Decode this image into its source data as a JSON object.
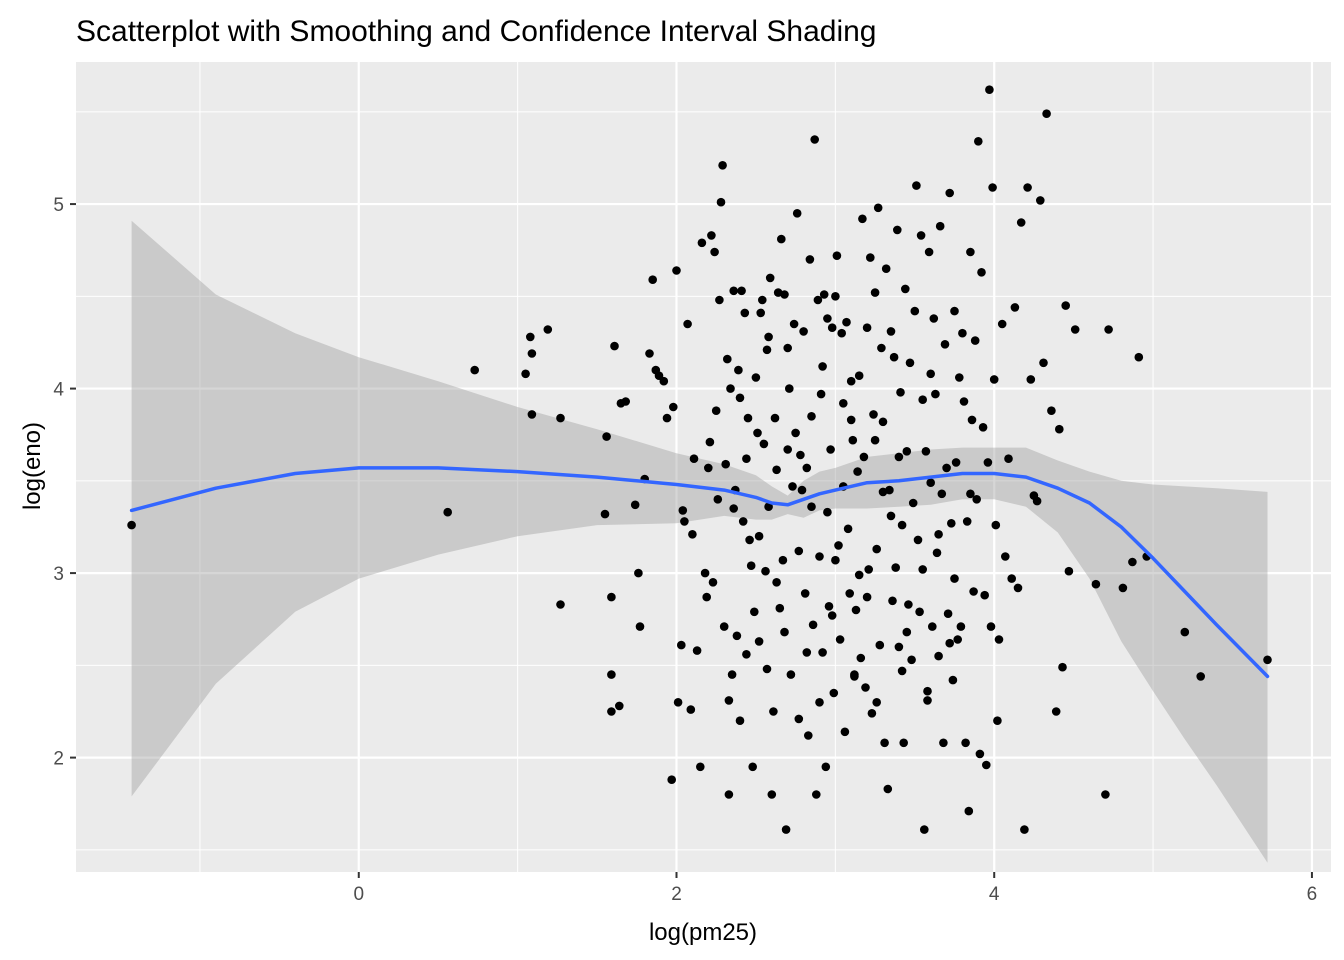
{
  "chart_data": {
    "type": "scatter",
    "title": "Scatterplot with Smoothing and Confidence Interval Shading",
    "xlabel": "log(pm25)",
    "ylabel": "log(eno)",
    "xlim": [
      -1.78,
      6.12
    ],
    "ylim": [
      1.38,
      5.77
    ],
    "x_ticks": [
      0,
      2,
      4,
      6
    ],
    "y_ticks": [
      2,
      3,
      4,
      5
    ],
    "x_tick_labels": [
      "0",
      "2",
      "4",
      "6"
    ],
    "y_tick_labels": [
      "2",
      "3",
      "4",
      "5"
    ],
    "grid": true,
    "legend": "none",
    "colors": {
      "panel": "#ebebeb",
      "grid": "#ffffff",
      "points": "#000000",
      "smooth": "#3366ff",
      "ribbon": "#bdbdbd"
    },
    "points": [
      [
        -1.43,
        3.26
      ],
      [
        0.56,
        3.33
      ],
      [
        0.73,
        4.1
      ],
      [
        1.05,
        4.08
      ],
      [
        1.08,
        4.28
      ],
      [
        1.09,
        4.19
      ],
      [
        1.09,
        3.86
      ],
      [
        1.19,
        4.32
      ],
      [
        1.27,
        2.83
      ],
      [
        1.27,
        3.84
      ],
      [
        1.55,
        3.32
      ],
      [
        1.56,
        3.74
      ],
      [
        1.59,
        2.87
      ],
      [
        1.59,
        2.45
      ],
      [
        1.59,
        2.25
      ],
      [
        1.61,
        4.23
      ],
      [
        1.64,
        2.28
      ],
      [
        1.65,
        3.92
      ],
      [
        1.68,
        3.93
      ],
      [
        1.74,
        3.37
      ],
      [
        1.76,
        3.0
      ],
      [
        1.77,
        2.71
      ],
      [
        1.8,
        3.51
      ],
      [
        1.83,
        4.19
      ],
      [
        1.85,
        4.59
      ],
      [
        1.87,
        4.1
      ],
      [
        1.89,
        4.07
      ],
      [
        1.92,
        4.04
      ],
      [
        1.94,
        3.84
      ],
      [
        1.97,
        1.88
      ],
      [
        1.98,
        3.9
      ],
      [
        2.0,
        4.64
      ],
      [
        2.01,
        2.3
      ],
      [
        2.03,
        2.61
      ],
      [
        2.05,
        3.28
      ],
      [
        2.07,
        4.35
      ],
      [
        2.09,
        2.26
      ],
      [
        2.11,
        3.62
      ],
      [
        2.13,
        2.58
      ],
      [
        2.15,
        1.95
      ],
      [
        2.16,
        4.79
      ],
      [
        2.18,
        3.0
      ],
      [
        2.19,
        2.87
      ],
      [
        2.2,
        3.57
      ],
      [
        2.21,
        3.71
      ],
      [
        2.22,
        4.83
      ],
      [
        2.23,
        2.95
      ],
      [
        2.24,
        4.74
      ],
      [
        2.26,
        3.4
      ],
      [
        2.27,
        4.48
      ],
      [
        2.28,
        5.01
      ],
      [
        2.29,
        5.21
      ],
      [
        2.3,
        2.71
      ],
      [
        2.31,
        3.59
      ],
      [
        2.32,
        4.16
      ],
      [
        2.33,
        2.31
      ],
      [
        2.33,
        1.8
      ],
      [
        2.34,
        4.0
      ],
      [
        2.35,
        2.45
      ],
      [
        2.36,
        4.53
      ],
      [
        2.37,
        3.45
      ],
      [
        2.38,
        2.66
      ],
      [
        2.39,
        4.1
      ],
      [
        2.4,
        2.2
      ],
      [
        2.41,
        4.53
      ],
      [
        2.42,
        3.28
      ],
      [
        2.43,
        4.41
      ],
      [
        2.44,
        2.56
      ],
      [
        2.45,
        3.84
      ],
      [
        2.47,
        3.04
      ],
      [
        2.48,
        1.95
      ],
      [
        2.49,
        2.79
      ],
      [
        2.5,
        4.06
      ],
      [
        2.51,
        3.76
      ],
      [
        2.52,
        3.2
      ],
      [
        2.53,
        4.41
      ],
      [
        2.54,
        4.48
      ],
      [
        2.55,
        3.7
      ],
      [
        2.56,
        3.01
      ],
      [
        2.57,
        4.21
      ],
      [
        2.58,
        3.36
      ],
      [
        2.59,
        4.6
      ],
      [
        2.6,
        1.8
      ],
      [
        2.61,
        2.25
      ],
      [
        2.62,
        3.84
      ],
      [
        2.63,
        3.56
      ],
      [
        2.64,
        4.52
      ],
      [
        2.65,
        2.81
      ],
      [
        2.66,
        4.81
      ],
      [
        2.67,
        3.07
      ],
      [
        2.68,
        4.51
      ],
      [
        2.69,
        1.61
      ],
      [
        2.7,
        3.67
      ],
      [
        2.71,
        4.0
      ],
      [
        2.72,
        2.45
      ],
      [
        2.73,
        3.47
      ],
      [
        2.74,
        4.35
      ],
      [
        2.75,
        3.76
      ],
      [
        2.76,
        4.95
      ],
      [
        2.77,
        2.21
      ],
      [
        2.78,
        3.64
      ],
      [
        2.79,
        3.45
      ],
      [
        2.8,
        4.31
      ],
      [
        2.81,
        2.89
      ],
      [
        2.82,
        3.57
      ],
      [
        2.83,
        2.12
      ],
      [
        2.84,
        4.7
      ],
      [
        2.85,
        3.36
      ],
      [
        2.86,
        2.72
      ],
      [
        2.87,
        5.35
      ],
      [
        2.88,
        1.8
      ],
      [
        2.89,
        4.48
      ],
      [
        2.9,
        3.09
      ],
      [
        2.91,
        3.97
      ],
      [
        2.92,
        2.57
      ],
      [
        2.93,
        4.51
      ],
      [
        2.94,
        1.95
      ],
      [
        2.95,
        4.38
      ],
      [
        2.96,
        2.82
      ],
      [
        2.97,
        3.67
      ],
      [
        2.98,
        4.33
      ],
      [
        2.99,
        2.35
      ],
      [
        3.0,
        4.5
      ],
      [
        3.01,
        4.72
      ],
      [
        3.02,
        3.15
      ],
      [
        3.03,
        2.64
      ],
      [
        3.04,
        4.3
      ],
      [
        3.05,
        3.92
      ],
      [
        3.06,
        2.14
      ],
      [
        3.07,
        4.36
      ],
      [
        3.08,
        3.24
      ],
      [
        3.09,
        2.89
      ],
      [
        3.1,
        4.04
      ],
      [
        3.11,
        3.72
      ],
      [
        3.12,
        2.45
      ],
      [
        3.13,
        2.8
      ],
      [
        3.14,
        3.55
      ],
      [
        3.15,
        4.07
      ],
      [
        3.16,
        2.54
      ],
      [
        3.17,
        4.92
      ],
      [
        3.18,
        3.63
      ],
      [
        3.19,
        2.38
      ],
      [
        3.2,
        4.33
      ],
      [
        3.21,
        3.02
      ],
      [
        3.22,
        4.71
      ],
      [
        3.23,
        2.24
      ],
      [
        3.24,
        3.86
      ],
      [
        3.25,
        4.52
      ],
      [
        3.26,
        3.13
      ],
      [
        3.27,
        4.98
      ],
      [
        3.28,
        2.61
      ],
      [
        3.29,
        4.22
      ],
      [
        3.3,
        3.44
      ],
      [
        3.31,
        2.08
      ],
      [
        3.32,
        4.65
      ],
      [
        3.33,
        1.83
      ],
      [
        3.34,
        3.45
      ],
      [
        3.35,
        4.31
      ],
      [
        3.36,
        2.85
      ],
      [
        3.37,
        4.17
      ],
      [
        3.38,
        3.03
      ],
      [
        3.39,
        4.86
      ],
      [
        3.4,
        2.6
      ],
      [
        3.41,
        3.98
      ],
      [
        3.42,
        3.26
      ],
      [
        3.43,
        2.08
      ],
      [
        3.44,
        4.54
      ],
      [
        3.45,
        3.66
      ],
      [
        3.46,
        2.83
      ],
      [
        3.47,
        4.14
      ],
      [
        3.48,
        2.53
      ],
      [
        3.49,
        3.38
      ],
      [
        3.5,
        4.42
      ],
      [
        3.51,
        5.1
      ],
      [
        3.52,
        3.18
      ],
      [
        3.53,
        2.79
      ],
      [
        3.54,
        4.83
      ],
      [
        3.55,
        3.94
      ],
      [
        3.56,
        1.61
      ],
      [
        3.57,
        3.66
      ],
      [
        3.58,
        2.31
      ],
      [
        3.59,
        4.74
      ],
      [
        3.6,
        3.49
      ],
      [
        3.61,
        2.71
      ],
      [
        3.62,
        4.38
      ],
      [
        3.63,
        3.97
      ],
      [
        3.64,
        3.11
      ],
      [
        3.65,
        2.55
      ],
      [
        3.66,
        4.88
      ],
      [
        3.67,
        3.43
      ],
      [
        3.68,
        2.08
      ],
      [
        3.69,
        4.24
      ],
      [
        3.7,
        3.57
      ],
      [
        3.71,
        2.78
      ],
      [
        3.72,
        5.06
      ],
      [
        3.73,
        3.27
      ],
      [
        3.74,
        2.42
      ],
      [
        3.75,
        4.42
      ],
      [
        3.76,
        3.6
      ],
      [
        3.77,
        2.64
      ],
      [
        3.78,
        4.06
      ],
      [
        3.79,
        2.71
      ],
      [
        3.8,
        4.3
      ],
      [
        3.81,
        3.93
      ],
      [
        3.82,
        2.08
      ],
      [
        3.83,
        3.28
      ],
      [
        3.84,
        1.71
      ],
      [
        3.85,
        4.74
      ],
      [
        3.86,
        3.83
      ],
      [
        3.87,
        2.9
      ],
      [
        3.88,
        4.26
      ],
      [
        3.89,
        3.4
      ],
      [
        3.9,
        5.34
      ],
      [
        3.91,
        2.02
      ],
      [
        3.92,
        4.63
      ],
      [
        3.93,
        3.79
      ],
      [
        3.94,
        2.88
      ],
      [
        3.95,
        1.96
      ],
      [
        3.96,
        3.6
      ],
      [
        3.97,
        5.62
      ],
      [
        3.98,
        2.71
      ],
      [
        3.99,
        5.09
      ],
      [
        4.0,
        4.05
      ],
      [
        4.01,
        3.26
      ],
      [
        4.02,
        2.2
      ],
      [
        4.03,
        2.64
      ],
      [
        4.05,
        4.35
      ],
      [
        4.07,
        3.09
      ],
      [
        4.09,
        3.62
      ],
      [
        4.11,
        2.97
      ],
      [
        4.13,
        4.44
      ],
      [
        4.15,
        2.92
      ],
      [
        4.17,
        4.9
      ],
      [
        4.19,
        1.61
      ],
      [
        4.21,
        5.09
      ],
      [
        4.23,
        4.05
      ],
      [
        4.25,
        3.42
      ],
      [
        4.27,
        3.39
      ],
      [
        4.29,
        5.02
      ],
      [
        4.31,
        4.14
      ],
      [
        4.33,
        5.49
      ],
      [
        4.36,
        3.88
      ],
      [
        4.39,
        2.25
      ],
      [
        4.41,
        3.78
      ],
      [
        4.43,
        2.49
      ],
      [
        4.45,
        4.45
      ],
      [
        4.47,
        3.01
      ],
      [
        4.51,
        4.32
      ],
      [
        4.64,
        2.94
      ],
      [
        4.7,
        1.8
      ],
      [
        4.72,
        4.32
      ],
      [
        4.81,
        2.92
      ],
      [
        4.87,
        3.06
      ],
      [
        4.91,
        4.17
      ],
      [
        4.96,
        3.09
      ],
      [
        5.2,
        2.68
      ],
      [
        5.3,
        2.44
      ],
      [
        5.72,
        2.53
      ],
      [
        2.04,
        3.34
      ],
      [
        2.1,
        3.21
      ],
      [
        2.25,
        3.88
      ],
      [
        2.44,
        3.62
      ],
      [
        2.57,
        2.48
      ],
      [
        2.63,
        2.95
      ],
      [
        2.77,
        3.12
      ],
      [
        2.85,
        3.85
      ],
      [
        2.95,
        3.33
      ],
      [
        3.05,
        3.47
      ],
      [
        3.15,
        2.99
      ],
      [
        3.25,
        3.72
      ],
      [
        3.35,
        3.31
      ],
      [
        3.45,
        2.68
      ],
      [
        3.55,
        3.02
      ],
      [
        3.65,
        3.21
      ],
      [
        3.75,
        2.97
      ],
      [
        3.85,
        3.43
      ],
      [
        2.36,
        3.35
      ],
      [
        2.52,
        2.63
      ],
      [
        2.68,
        2.68
      ],
      [
        2.82,
        2.57
      ],
      [
        2.98,
        2.77
      ],
      [
        3.12,
        2.44
      ],
      [
        3.26,
        2.3
      ],
      [
        3.42,
        2.47
      ],
      [
        3.58,
        2.36
      ],
      [
        3.72,
        2.62
      ],
      [
        2.46,
        3.18
      ],
      [
        2.9,
        2.3
      ],
      [
        3.0,
        3.07
      ],
      [
        3.2,
        2.87
      ],
      [
        3.4,
        3.63
      ],
      [
        3.6,
        4.08
      ],
      [
        2.7,
        4.22
      ],
      [
        2.92,
        4.12
      ],
      [
        3.1,
        3.83
      ],
      [
        3.3,
        3.82
      ],
      [
        2.4,
        3.95
      ],
      [
        2.58,
        4.28
      ]
    ],
    "smooth": {
      "name": "",
      "x": [
        -1.43,
        -0.9,
        -0.4,
        0.0,
        0.5,
        1.0,
        1.5,
        2.0,
        2.3,
        2.5,
        2.6,
        2.7,
        2.8,
        2.9,
        3.0,
        3.2,
        3.4,
        3.6,
        3.8,
        4.0,
        4.2,
        4.4,
        4.6,
        4.8,
        5.0,
        5.2,
        5.4,
        5.72
      ],
      "y": [
        3.34,
        3.46,
        3.54,
        3.57,
        3.57,
        3.55,
        3.52,
        3.48,
        3.45,
        3.41,
        3.38,
        3.37,
        3.4,
        3.43,
        3.45,
        3.49,
        3.5,
        3.52,
        3.54,
        3.54,
        3.52,
        3.46,
        3.38,
        3.25,
        3.08,
        2.9,
        2.72,
        2.44
      ],
      "lower": [
        1.79,
        2.4,
        2.79,
        2.97,
        3.1,
        3.2,
        3.26,
        3.27,
        3.31,
        3.29,
        3.29,
        3.32,
        3.3,
        3.34,
        3.35,
        3.35,
        3.36,
        3.37,
        3.4,
        3.4,
        3.36,
        3.22,
        2.97,
        2.63,
        2.36,
        2.1,
        1.85,
        1.43
      ],
      "upper": [
        4.91,
        4.51,
        4.3,
        4.17,
        4.04,
        3.9,
        3.78,
        3.65,
        3.59,
        3.53,
        3.47,
        3.42,
        3.5,
        3.55,
        3.57,
        3.63,
        3.65,
        3.67,
        3.68,
        3.68,
        3.68,
        3.61,
        3.55,
        3.5,
        3.48,
        3.47,
        3.46,
        3.44
      ]
    }
  }
}
